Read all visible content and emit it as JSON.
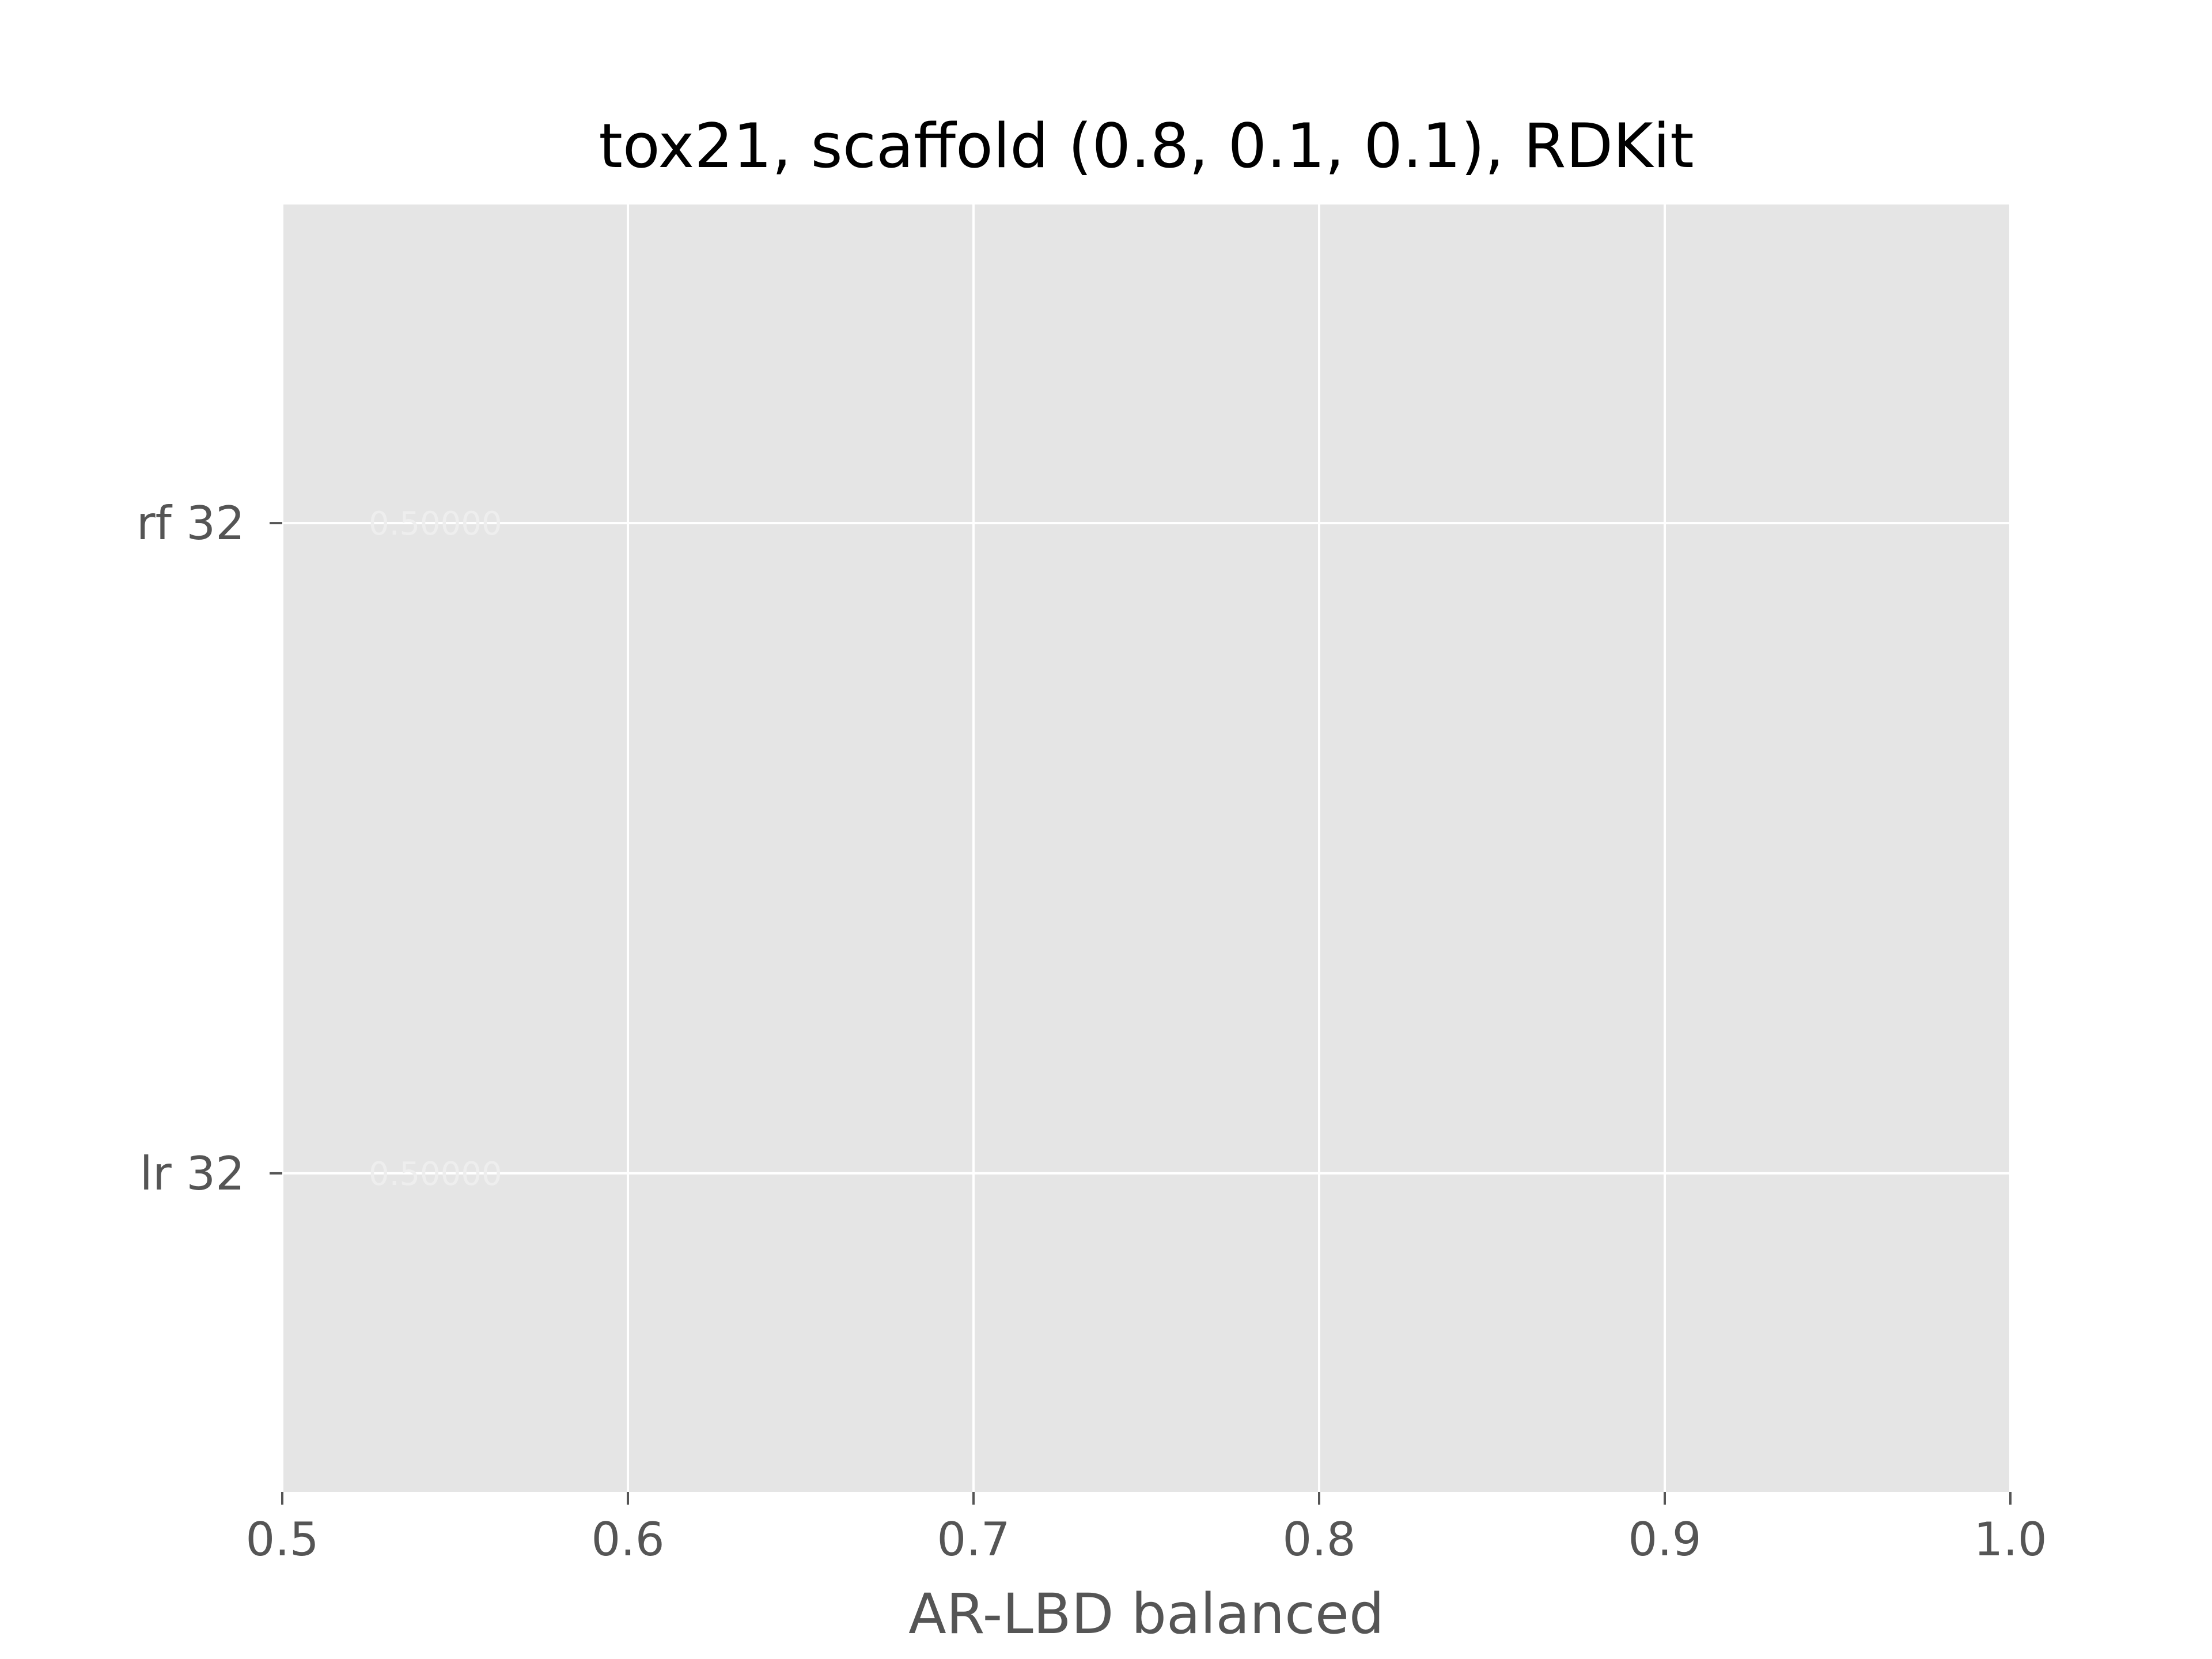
{
  "chart_data": {
    "type": "bar",
    "orientation": "horizontal",
    "title": "tox21, scaffold (0.8, 0.1, 0.1), RDKit",
    "xlabel": "AR-LBD balanced",
    "ylabel": "",
    "xlim": [
      0.5,
      1.0
    ],
    "x_ticks": [
      "0.5",
      "0.6",
      "0.7",
      "0.8",
      "0.9",
      "1.0"
    ],
    "categories": [
      "lr 32",
      "rf 32"
    ],
    "values": [
      0.5,
      0.5
    ],
    "data_labels": [
      "0.50000",
      "0.50000"
    ],
    "grid": true,
    "style": "ggplot",
    "colors": {
      "plot_background": "#e5e5e5",
      "grid": "#ffffff",
      "tick_text": "#555555",
      "data_label": "#eeeeee",
      "bar": "#e24a33"
    }
  }
}
